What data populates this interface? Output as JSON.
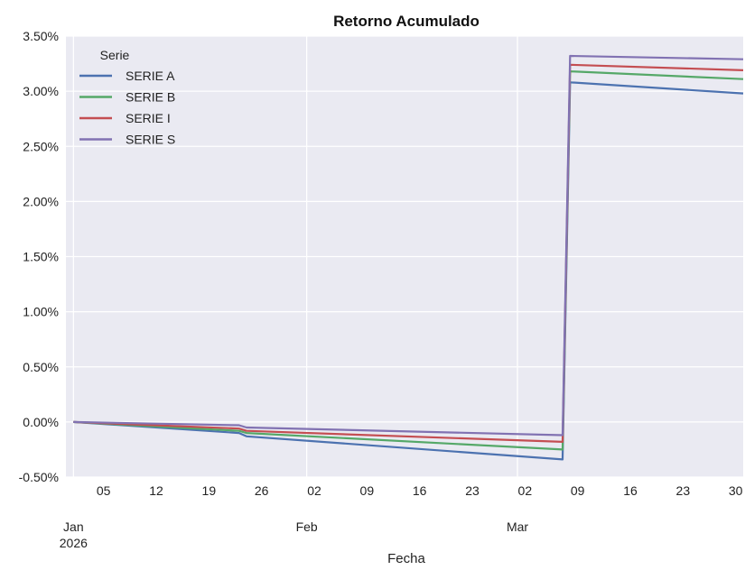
{
  "chart_data": {
    "type": "line",
    "title": "Retorno Acumulado",
    "xlabel": "Fecha",
    "ylabel": "",
    "x_range": [
      "2025-12-31",
      "2026-03-31"
    ],
    "ylim": [
      -0.5,
      3.5
    ],
    "y_ticks": [
      -0.5,
      0.0,
      0.5,
      1.0,
      1.5,
      2.0,
      2.5,
      3.0,
      3.5
    ],
    "y_tick_labels": [
      "-0.50%",
      "0.00%",
      "0.50%",
      "1.00%",
      "1.50%",
      "2.00%",
      "2.50%",
      "3.00%",
      "3.50%"
    ],
    "x_ticks": [
      {
        "date": "2026-01-05",
        "label": "05"
      },
      {
        "date": "2026-01-12",
        "label": "12"
      },
      {
        "date": "2026-01-19",
        "label": "19"
      },
      {
        "date": "2026-01-26",
        "label": "26"
      },
      {
        "date": "2026-02-02",
        "label": "02"
      },
      {
        "date": "2026-02-09",
        "label": "09"
      },
      {
        "date": "2026-02-16",
        "label": "16"
      },
      {
        "date": "2026-02-23",
        "label": "23"
      },
      {
        "date": "2026-03-02",
        "label": "02"
      },
      {
        "date": "2026-03-09",
        "label": "09"
      },
      {
        "date": "2026-03-16",
        "label": "16"
      },
      {
        "date": "2026-03-23",
        "label": "23"
      },
      {
        "date": "2026-03-30",
        "label": "30"
      }
    ],
    "month_labels": [
      {
        "date": "2026-01-01",
        "label": "Jan",
        "sublabel": "2026"
      },
      {
        "date": "2026-02-01",
        "label": "Feb",
        "sublabel": ""
      },
      {
        "date": "2026-03-01",
        "label": "Mar",
        "sublabel": ""
      }
    ],
    "grid": true,
    "legend_title": "Serie",
    "legend_position": "top-left",
    "series": [
      {
        "name": "SERIE A",
        "color": "#4c72b0",
        "points": [
          [
            "2026-01-01",
            0.0
          ],
          [
            "2026-01-23",
            -0.1
          ],
          [
            "2026-01-24",
            -0.13
          ],
          [
            "2026-03-07",
            -0.34
          ],
          [
            "2026-03-08",
            3.08
          ],
          [
            "2026-03-31",
            2.98
          ]
        ]
      },
      {
        "name": "SERIE B",
        "color": "#55a868",
        "points": [
          [
            "2026-01-01",
            0.0
          ],
          [
            "2026-01-23",
            -0.08
          ],
          [
            "2026-01-24",
            -0.1
          ],
          [
            "2026-03-07",
            -0.25
          ],
          [
            "2026-03-08",
            3.18
          ],
          [
            "2026-03-31",
            3.11
          ]
        ]
      },
      {
        "name": "SERIE I",
        "color": "#c44e52",
        "points": [
          [
            "2026-01-01",
            0.0
          ],
          [
            "2026-01-23",
            -0.06
          ],
          [
            "2026-01-24",
            -0.08
          ],
          [
            "2026-03-07",
            -0.18
          ],
          [
            "2026-03-08",
            3.24
          ],
          [
            "2026-03-31",
            3.19
          ]
        ]
      },
      {
        "name": "SERIE S",
        "color": "#8172b2",
        "points": [
          [
            "2026-01-01",
            0.0
          ],
          [
            "2026-01-23",
            -0.03
          ],
          [
            "2026-01-24",
            -0.05
          ],
          [
            "2026-03-07",
            -0.12
          ],
          [
            "2026-03-08",
            3.32
          ],
          [
            "2026-03-31",
            3.29
          ]
        ]
      }
    ]
  }
}
